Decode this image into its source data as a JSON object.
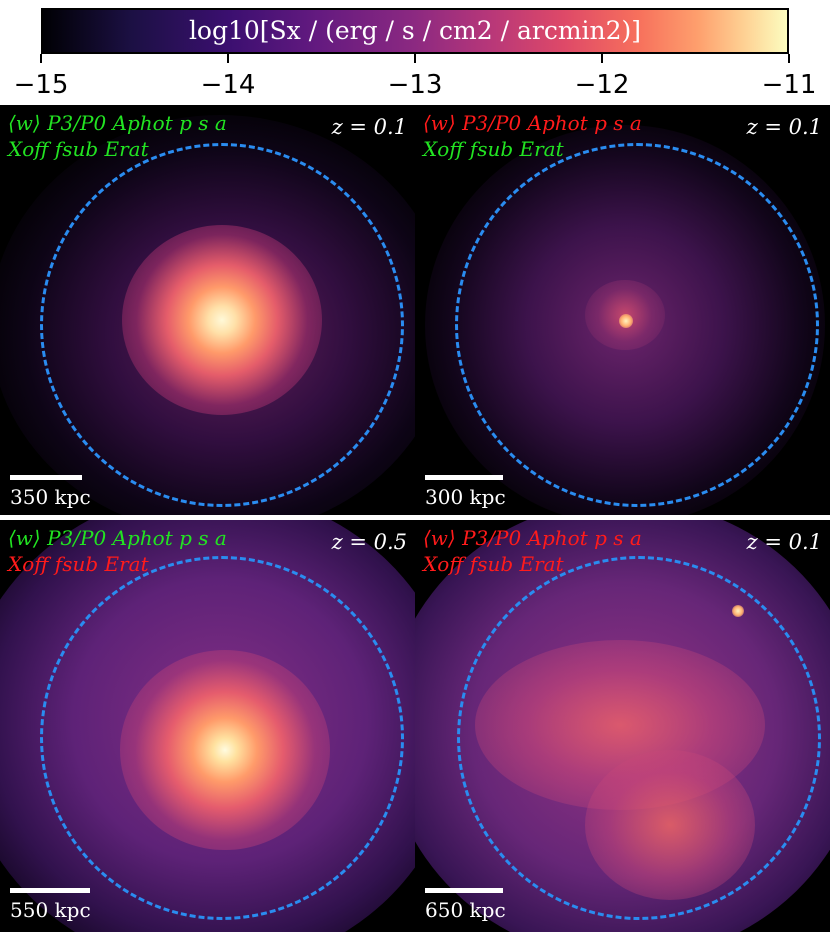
{
  "colorbar": {
    "label": "log10[Sx / (erg / s / cm2 / arcmin2)]",
    "ticks": [
      "−15",
      "−14",
      "−13",
      "−12",
      "−11"
    ]
  },
  "panels": [
    {
      "line1": "⟨w⟩ P3/P0 Aphot p s a",
      "line2": "Xoff fsub Erat",
      "line1_color": "green",
      "line2_color": "green",
      "redshift": "z = 0.1",
      "scale": "350 kpc"
    },
    {
      "line1": "⟨w⟩ P3/P0 Aphot p s a",
      "line2": "Xoff fsub Erat",
      "line1_color": "red",
      "line2_color": "green",
      "redshift": "z = 0.1",
      "scale": "300 kpc"
    },
    {
      "line1": "⟨w⟩ P3/P0 Aphot p s a",
      "line2": "Xoff fsub Erat",
      "line1_color": "green",
      "line2_color": "red",
      "redshift": "z = 0.5",
      "scale": "550 kpc"
    },
    {
      "line1": "⟨w⟩ P3/P0 Aphot p s a",
      "line2": "Xoff fsub Erat",
      "line1_color": "red",
      "line2_color": "red",
      "redshift": "z = 0.1",
      "scale": "650 kpc"
    }
  ],
  "colors": {
    "green": "#22e322",
    "red": "#ff1b1b",
    "circle": "#2a8cf0"
  }
}
